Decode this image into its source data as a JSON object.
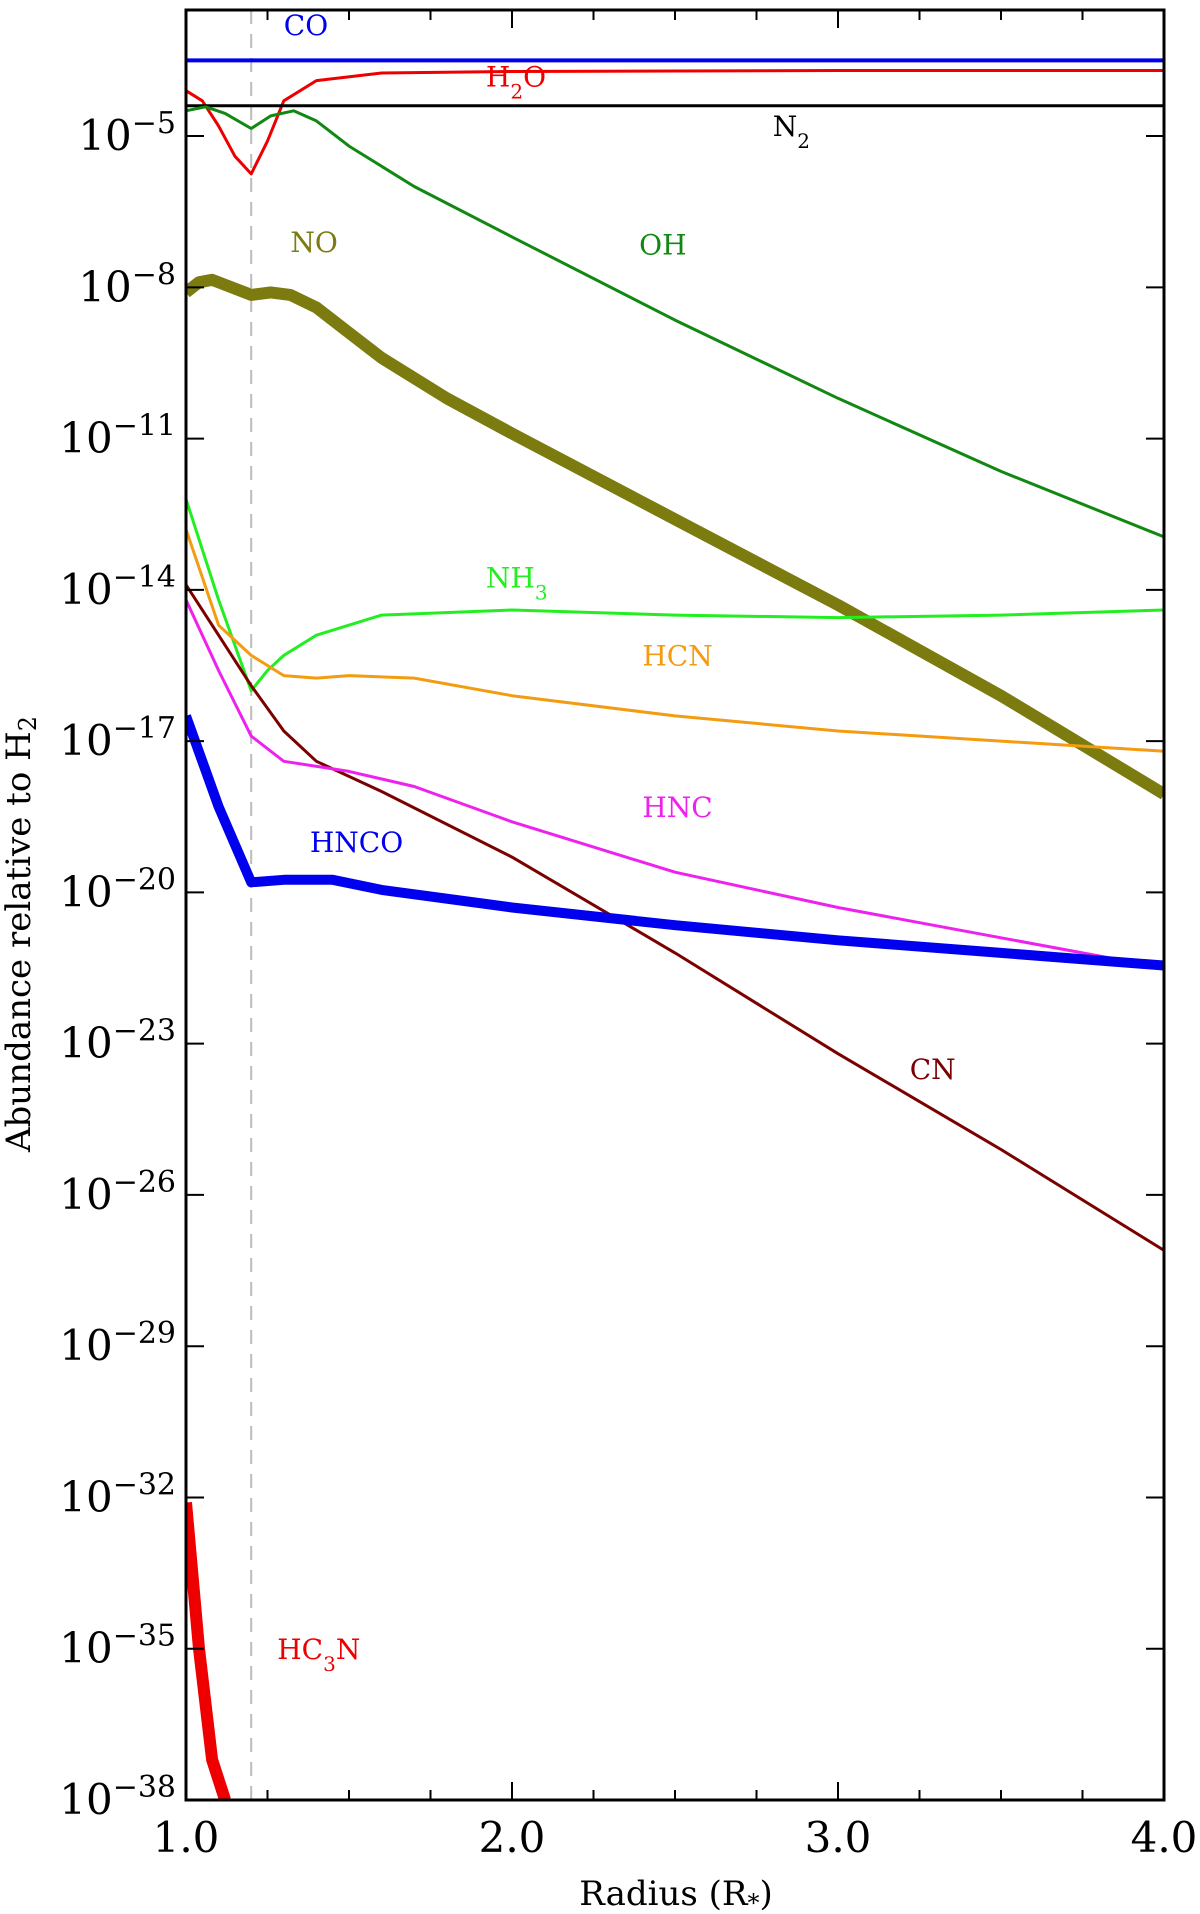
{
  "chart_data": {
    "type": "line",
    "xlabel": "Radius (R",
    "xlabel_sub": "*",
    "xlabel_end": ")",
    "ylabel": "Abundance relative to H",
    "ylabel_sub": "2",
    "x_range": [
      1.0,
      4.0
    ],
    "y_log_range": [
      -38,
      -2.5
    ],
    "y_scale": "log",
    "x_ticks": [
      {
        "value": 1.0,
        "label": "1.0"
      },
      {
        "value": 2.0,
        "label": "2.0"
      },
      {
        "value": 3.0,
        "label": "3.0"
      },
      {
        "value": 4.0,
        "label": "4.0"
      }
    ],
    "y_ticks": [
      {
        "exp": -5,
        "base": "10",
        "sup": "−5"
      },
      {
        "exp": -8,
        "base": "10",
        "sup": "−8"
      },
      {
        "exp": -11,
        "base": "10",
        "sup": "−11"
      },
      {
        "exp": -14,
        "base": "10",
        "sup": "−14"
      },
      {
        "exp": -17,
        "base": "10",
        "sup": "−17"
      },
      {
        "exp": -20,
        "base": "10",
        "sup": "−20"
      },
      {
        "exp": -23,
        "base": "10",
        "sup": "−23"
      },
      {
        "exp": -26,
        "base": "10",
        "sup": "−26"
      },
      {
        "exp": -29,
        "base": "10",
        "sup": "−29"
      },
      {
        "exp": -32,
        "base": "10",
        "sup": "−32"
      },
      {
        "exp": -35,
        "base": "10",
        "sup": "−35"
      },
      {
        "exp": -38,
        "base": "10",
        "sup": "−38"
      }
    ],
    "reference_line": {
      "x": 1.2,
      "style": "dashed",
      "color": "#bbbbbb"
    },
    "series": [
      {
        "name": "CO",
        "label_text": "CO",
        "label_sub": "",
        "label_tail": "",
        "color": "#0000ee",
        "width": 4,
        "points": [
          [
            1.0,
            -3.5
          ],
          [
            4.0,
            -3.5
          ]
        ],
        "label_pos": [
          1.3,
          -3.0
        ]
      },
      {
        "name": "H2O",
        "label_text": "H",
        "label_sub": "2",
        "label_tail": "O",
        "color": "#ee0000",
        "width": 3,
        "points": [
          [
            1.0,
            -4.1
          ],
          [
            1.05,
            -4.3
          ],
          [
            1.1,
            -4.8
          ],
          [
            1.15,
            -5.4
          ],
          [
            1.2,
            -5.75
          ],
          [
            1.25,
            -5.1
          ],
          [
            1.3,
            -4.3
          ],
          [
            1.4,
            -3.9
          ],
          [
            1.6,
            -3.75
          ],
          [
            2.0,
            -3.72
          ],
          [
            3.0,
            -3.7
          ],
          [
            4.0,
            -3.7
          ]
        ],
        "label_pos": [
          1.92,
          -4.02
        ]
      },
      {
        "name": "N2",
        "label_text": "N",
        "label_sub": "2",
        "label_tail": "",
        "color": "#000000",
        "width": 3,
        "points": [
          [
            1.0,
            -4.4
          ],
          [
            4.0,
            -4.4
          ]
        ],
        "label_pos": [
          2.8,
          -5.0
        ]
      },
      {
        "name": "OH",
        "label_text": "OH",
        "label_sub": "",
        "label_tail": "",
        "color": "#118811",
        "width": 3,
        "points": [
          [
            1.0,
            -4.5
          ],
          [
            1.06,
            -4.42
          ],
          [
            1.12,
            -4.55
          ],
          [
            1.2,
            -4.85
          ],
          [
            1.26,
            -4.6
          ],
          [
            1.33,
            -4.5
          ],
          [
            1.4,
            -4.7
          ],
          [
            1.5,
            -5.2
          ],
          [
            1.7,
            -6.0
          ],
          [
            2.0,
            -7.0
          ],
          [
            2.5,
            -8.65
          ],
          [
            3.0,
            -10.2
          ],
          [
            3.5,
            -11.65
          ],
          [
            4.0,
            -12.95
          ]
        ],
        "label_pos": [
          2.39,
          -7.35
        ]
      },
      {
        "name": "NO",
        "label_text": "NO",
        "label_sub": "",
        "label_tail": "",
        "color": "#7b7b0f",
        "width": 12,
        "points": [
          [
            1.0,
            -8.1
          ],
          [
            1.04,
            -7.9
          ],
          [
            1.08,
            -7.85
          ],
          [
            1.12,
            -7.95
          ],
          [
            1.2,
            -8.15
          ],
          [
            1.26,
            -8.1
          ],
          [
            1.32,
            -8.15
          ],
          [
            1.4,
            -8.4
          ],
          [
            1.5,
            -8.9
          ],
          [
            1.6,
            -9.4
          ],
          [
            1.8,
            -10.2
          ],
          [
            2.0,
            -10.9
          ],
          [
            2.5,
            -12.6
          ],
          [
            3.0,
            -14.3
          ],
          [
            3.5,
            -16.1
          ],
          [
            4.0,
            -18.05
          ]
        ],
        "label_pos": [
          1.32,
          -7.3
        ]
      },
      {
        "name": "NH3",
        "label_text": "NH",
        "label_sub": "3",
        "label_tail": "",
        "color": "#22ee22",
        "width": 3,
        "points": [
          [
            1.0,
            -12.2
          ],
          [
            1.1,
            -14.2
          ],
          [
            1.2,
            -16.0
          ],
          [
            1.25,
            -15.6
          ],
          [
            1.3,
            -15.3
          ],
          [
            1.4,
            -14.9
          ],
          [
            1.6,
            -14.5
          ],
          [
            2.0,
            -14.4
          ],
          [
            2.5,
            -14.5
          ],
          [
            3.0,
            -14.55
          ],
          [
            3.5,
            -14.5
          ],
          [
            4.0,
            -14.4
          ]
        ],
        "label_pos": [
          1.92,
          -13.95
        ]
      },
      {
        "name": "HCN",
        "label_text": "HCN",
        "label_sub": "",
        "label_tail": "",
        "color": "#f39c12",
        "width": 3,
        "points": [
          [
            1.0,
            -12.8
          ],
          [
            1.1,
            -14.7
          ],
          [
            1.2,
            -15.3
          ],
          [
            1.3,
            -15.7
          ],
          [
            1.4,
            -15.75
          ],
          [
            1.5,
            -15.7
          ],
          [
            1.7,
            -15.75
          ],
          [
            2.0,
            -16.1
          ],
          [
            2.5,
            -16.5
          ],
          [
            3.0,
            -16.8
          ],
          [
            3.5,
            -17.0
          ],
          [
            4.0,
            -17.2
          ]
        ],
        "label_pos": [
          2.4,
          -15.5
        ]
      },
      {
        "name": "CN",
        "label_text": "CN",
        "label_sub": "",
        "label_tail": "",
        "color": "#7b0000",
        "width": 3,
        "points": [
          [
            1.0,
            -13.9
          ],
          [
            1.1,
            -14.9
          ],
          [
            1.2,
            -15.9
          ],
          [
            1.3,
            -16.8
          ],
          [
            1.4,
            -17.4
          ],
          [
            1.6,
            -18.0
          ],
          [
            2.0,
            -19.3
          ],
          [
            2.5,
            -21.2
          ],
          [
            3.0,
            -23.2
          ],
          [
            3.5,
            -25.1
          ],
          [
            4.0,
            -27.1
          ]
        ],
        "label_pos": [
          3.22,
          -23.7
        ]
      },
      {
        "name": "HNC",
        "label_text": "HNC",
        "label_sub": "",
        "label_tail": "",
        "color": "#ee22ee",
        "width": 3,
        "points": [
          [
            1.0,
            -14.2
          ],
          [
            1.1,
            -15.6
          ],
          [
            1.2,
            -16.9
          ],
          [
            1.3,
            -17.4
          ],
          [
            1.5,
            -17.6
          ],
          [
            1.7,
            -17.9
          ],
          [
            2.0,
            -18.6
          ],
          [
            2.5,
            -19.6
          ],
          [
            3.0,
            -20.3
          ],
          [
            3.5,
            -20.9
          ],
          [
            4.0,
            -21.5
          ]
        ],
        "label_pos": [
          2.4,
          -18.5
        ]
      },
      {
        "name": "HNCO",
        "label_text": "HNCO",
        "label_sub": "",
        "label_tail": "",
        "color": "#0000ee",
        "width": 10,
        "points": [
          [
            1.0,
            -16.5
          ],
          [
            1.1,
            -18.3
          ],
          [
            1.2,
            -19.8
          ],
          [
            1.3,
            -19.75
          ],
          [
            1.45,
            -19.75
          ],
          [
            1.6,
            -19.95
          ],
          [
            2.0,
            -20.3
          ],
          [
            2.5,
            -20.65
          ],
          [
            3.0,
            -20.95
          ],
          [
            3.5,
            -21.2
          ],
          [
            4.0,
            -21.45
          ]
        ],
        "label_pos": [
          1.38,
          -19.2
        ]
      },
      {
        "name": "HC3N",
        "label_text": "HC",
        "label_sub": "3",
        "label_tail": "N",
        "color": "#ee0000",
        "width": 12,
        "points": [
          [
            1.0,
            -32.1
          ],
          [
            1.04,
            -35.0
          ],
          [
            1.08,
            -37.2
          ],
          [
            1.12,
            -38.0
          ]
        ],
        "label_pos": [
          1.28,
          -35.2
        ]
      }
    ]
  }
}
